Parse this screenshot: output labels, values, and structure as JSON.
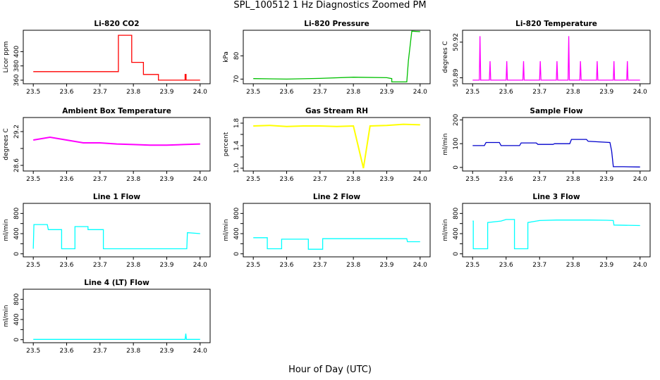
{
  "figure": {
    "title": "SPL_100512  1 Hz Diagnostics Zoomed PM",
    "xlabel": "Hour of Day (UTC)"
  },
  "chart_data": [
    {
      "type": "line",
      "title": "Li-820 CO2",
      "ylabel": "Licor ppm",
      "color": "#ff0000",
      "xlim": [
        23.47,
        24.03
      ],
      "ylim": [
        355,
        430
      ],
      "xticks": [
        23.5,
        23.6,
        23.7,
        23.8,
        23.9,
        24.0
      ],
      "yticks": [
        360,
        380,
        400
      ],
      "series": [
        {
          "x": [
            23.5,
            23.755,
            23.755,
            23.795,
            23.795,
            23.83,
            23.83,
            23.875,
            23.875,
            23.955,
            23.955,
            23.958,
            23.958,
            24.0
          ],
          "y": [
            372,
            372,
            423,
            423,
            385,
            385,
            368,
            368,
            360,
            360,
            368,
            368,
            360,
            360
          ]
        }
      ]
    },
    {
      "type": "line",
      "title": "Li-820 Pressure",
      "ylabel": "kPa",
      "color": "#00c000",
      "xlim": [
        23.47,
        24.03
      ],
      "ylim": [
        68,
        91
      ],
      "xticks": [
        23.5,
        23.6,
        23.7,
        23.8,
        23.9,
        24.0
      ],
      "yticks": [
        70,
        80
      ],
      "series": [
        {
          "x": [
            23.5,
            23.6,
            23.7,
            23.8,
            23.9,
            23.915,
            23.915,
            23.96,
            23.965,
            23.975,
            24.0
          ],
          "y": [
            70.2,
            70.0,
            70.3,
            70.8,
            70.6,
            70.2,
            68.8,
            68.8,
            78,
            90.6,
            90.4
          ]
        }
      ]
    },
    {
      "type": "line",
      "title": "Li-820 Temperature",
      "ylabel": "degrees C",
      "color": "#ff00ff",
      "xlim": [
        23.47,
        24.03
      ],
      "ylim": [
        50.885,
        50.93
      ],
      "xticks": [
        23.5,
        23.6,
        23.7,
        23.8,
        23.9,
        24.0
      ],
      "yticks": [
        50.89,
        50.92
      ],
      "yticklabels": [
        "50.89",
        "50.92"
      ],
      "series": [
        {
          "x": [
            23.5,
            23.52,
            23.522,
            23.524,
            23.55,
            23.552,
            23.554,
            23.6,
            23.602,
            23.604,
            23.65,
            23.652,
            23.654,
            23.7,
            23.702,
            23.704,
            23.75,
            23.752,
            23.754,
            23.785,
            23.787,
            23.789,
            23.82,
            23.822,
            23.824,
            23.87,
            23.872,
            23.874,
            23.92,
            23.922,
            23.924,
            23.96,
            23.962,
            23.964,
            24.0
          ],
          "y": [
            50.888,
            50.888,
            50.925,
            50.888,
            50.888,
            50.904,
            50.888,
            50.888,
            50.904,
            50.888,
            50.888,
            50.904,
            50.888,
            50.888,
            50.904,
            50.888,
            50.888,
            50.904,
            50.888,
            50.888,
            50.925,
            50.888,
            50.888,
            50.904,
            50.888,
            50.888,
            50.904,
            50.888,
            50.888,
            50.904,
            50.888,
            50.888,
            50.904,
            50.888,
            50.888
          ]
        }
      ]
    },
    {
      "type": "line",
      "title": "Ambient Box Temperature",
      "ylabel": "degrees C",
      "color": "#ff00ff",
      "xlim": [
        23.47,
        24.03
      ],
      "ylim": [
        28.5,
        29.45
      ],
      "xticks": [
        23.5,
        23.6,
        23.7,
        23.8,
        23.9,
        24.0
      ],
      "yticks": [
        28.6,
        28.9,
        29.2
      ],
      "yticklabels": [
        "28.6",
        "",
        "29.2"
      ],
      "series": [
        {
          "x": [
            23.5,
            23.55,
            23.6,
            23.65,
            23.7,
            23.75,
            23.8,
            23.85,
            23.9,
            23.95,
            24.0
          ],
          "y": [
            29.05,
            29.1,
            29.05,
            29.0,
            29.0,
            28.98,
            28.97,
            28.96,
            28.96,
            28.97,
            28.98
          ]
        }
      ]
    },
    {
      "type": "line",
      "title": "Gas Stream RH",
      "ylabel": "percent",
      "color": "#ffff00",
      "xlim": [
        23.47,
        24.03
      ],
      "ylim": [
        0.95,
        1.9
      ],
      "xticks": [
        23.5,
        23.6,
        23.7,
        23.8,
        23.9,
        24.0
      ],
      "yticks": [
        1.0,
        1.2,
        1.4,
        1.6,
        1.8
      ],
      "yticklabels": [
        "1.0",
        "",
        "1.4",
        "",
        "1.8"
      ],
      "series": [
        {
          "x": [
            23.5,
            23.55,
            23.6,
            23.65,
            23.7,
            23.75,
            23.8,
            23.83,
            23.85,
            23.9,
            23.95,
            24.0
          ],
          "y": [
            1.75,
            1.76,
            1.74,
            1.75,
            1.75,
            1.74,
            1.75,
            1.0,
            1.75,
            1.76,
            1.78,
            1.77
          ]
        }
      ]
    },
    {
      "type": "line",
      "title": "Sample Flow",
      "ylabel": "ml/min",
      "color": "#0000cc",
      "xlim": [
        23.47,
        24.03
      ],
      "ylim": [
        -15,
        210
      ],
      "xticks": [
        23.5,
        23.6,
        23.7,
        23.8,
        23.9,
        24.0
      ],
      "yticks": [
        0,
        100,
        200
      ],
      "series": [
        {
          "x": [
            23.5,
            23.535,
            23.54,
            23.58,
            23.585,
            23.64,
            23.645,
            23.69,
            23.695,
            23.74,
            23.745,
            23.79,
            23.795,
            23.84,
            23.845,
            23.91,
            23.915,
            23.92,
            23.95,
            24.0
          ],
          "y": [
            92,
            92,
            105,
            105,
            92,
            92,
            103,
            103,
            97,
            97,
            100,
            100,
            118,
            118,
            110,
            105,
            70,
            3,
            3,
            2
          ]
        }
      ]
    },
    {
      "type": "line",
      "title": "Line 1 Flow",
      "ylabel": "ml/min",
      "color": "#00ffff",
      "xlim": [
        23.47,
        24.03
      ],
      "ylim": [
        -60,
        1000
      ],
      "xticks": [
        23.5,
        23.6,
        23.7,
        23.8,
        23.9,
        24.0
      ],
      "yticks": [
        0,
        200,
        400,
        600,
        800
      ],
      "yticklabels": [
        "0",
        "",
        "400",
        "",
        "800"
      ],
      "series": [
        {
          "x": [
            23.5,
            23.502,
            23.542,
            23.545,
            23.585,
            23.585,
            23.625,
            23.625,
            23.664,
            23.664,
            23.71,
            23.71,
            23.75,
            23.8,
            23.9,
            23.96,
            23.962,
            24.0
          ],
          "y": [
            100,
            580,
            580,
            480,
            480,
            100,
            100,
            540,
            540,
            480,
            480,
            100,
            100,
            100,
            100,
            100,
            420,
            400
          ]
        }
      ]
    },
    {
      "type": "line",
      "title": "Line 2 Flow",
      "ylabel": "ml/min",
      "color": "#00ffff",
      "xlim": [
        23.47,
        24.03
      ],
      "ylim": [
        -60,
        1000
      ],
      "xticks": [
        23.5,
        23.6,
        23.7,
        23.8,
        23.9,
        24.0
      ],
      "yticks": [
        0,
        200,
        400,
        600,
        800
      ],
      "yticklabels": [
        "0",
        "",
        "400",
        "",
        "800"
      ],
      "series": [
        {
          "x": [
            23.5,
            23.542,
            23.542,
            23.585,
            23.585,
            23.665,
            23.665,
            23.708,
            23.708,
            23.8,
            23.9,
            23.96,
            23.962,
            24.0
          ],
          "y": [
            320,
            320,
            100,
            100,
            290,
            290,
            90,
            90,
            300,
            300,
            300,
            300,
            240,
            240
          ]
        }
      ]
    },
    {
      "type": "line",
      "title": "Line 3 Flow",
      "ylabel": "ml/min",
      "color": "#00ffff",
      "xlim": [
        23.47,
        24.03
      ],
      "ylim": [
        -60,
        1000
      ],
      "xticks": [
        23.5,
        23.6,
        23.7,
        23.8,
        23.9,
        24.0
      ],
      "yticks": [
        0,
        200,
        400,
        600,
        800
      ],
      "yticklabels": [
        "0",
        "",
        "400",
        "",
        "800"
      ],
      "series": [
        {
          "x": [
            23.5,
            23.502,
            23.502,
            23.545,
            23.545,
            23.585,
            23.6,
            23.625,
            23.625,
            23.665,
            23.665,
            23.7,
            23.75,
            23.8,
            23.85,
            23.9,
            23.92,
            23.922,
            24.0
          ],
          "y": [
            650,
            650,
            100,
            100,
            620,
            650,
            680,
            680,
            100,
            100,
            620,
            660,
            670,
            670,
            670,
            665,
            660,
            570,
            560
          ]
        }
      ]
    },
    {
      "type": "line",
      "title": "Line 4 (LT) Flow",
      "ylabel": "ml/min",
      "color": "#00ffff",
      "xlim": [
        23.47,
        24.03
      ],
      "ylim": [
        -60,
        1000
      ],
      "xticks": [
        23.5,
        23.6,
        23.7,
        23.8,
        23.9,
        24.0
      ],
      "yticks": [
        0,
        200,
        400,
        600,
        800
      ],
      "yticklabels": [
        "0",
        "",
        "400",
        "",
        "800"
      ],
      "series": [
        {
          "x": [
            23.5,
            23.6,
            23.7,
            23.8,
            23.9,
            23.955,
            23.957,
            23.959,
            23.961,
            24.0
          ],
          "y": [
            5,
            5,
            5,
            5,
            5,
            5,
            120,
            5,
            5,
            5
          ]
        }
      ]
    }
  ]
}
